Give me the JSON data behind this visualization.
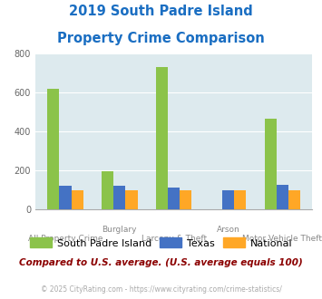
{
  "title_line1": "2019 South Padre Island",
  "title_line2": "Property Crime Comparison",
  "title_color": "#1a6ec2",
  "cat_labels_top": [
    "",
    "Burglary",
    "",
    "Arson",
    ""
  ],
  "cat_labels_bot": [
    "All Property Crime",
    "",
    "Larceny & Theft",
    "",
    "Motor Vehicle Theft"
  ],
  "series": {
    "South Padre Island": [
      620,
      195,
      730,
      null,
      465
    ],
    "Texas": [
      120,
      120,
      110,
      100,
      125
    ],
    "National": [
      100,
      100,
      100,
      100,
      100
    ]
  },
  "colors": {
    "South Padre Island": "#8BC34A",
    "Texas": "#4472C4",
    "National": "#FFA726"
  },
  "ylim": [
    0,
    800
  ],
  "yticks": [
    0,
    200,
    400,
    600,
    800
  ],
  "plot_bg": "#ddeaee",
  "grid_color": "#ffffff",
  "note": "Compared to U.S. average. (U.S. average equals 100)",
  "note_color": "#8B0000",
  "footer": "© 2025 CityRating.com - https://www.cityrating.com/crime-statistics/",
  "footer_color": "#aaaaaa",
  "footer_link_color": "#4472C4",
  "legend_labels": [
    "South Padre Island",
    "Texas",
    "National"
  ],
  "bar_width": 0.22
}
